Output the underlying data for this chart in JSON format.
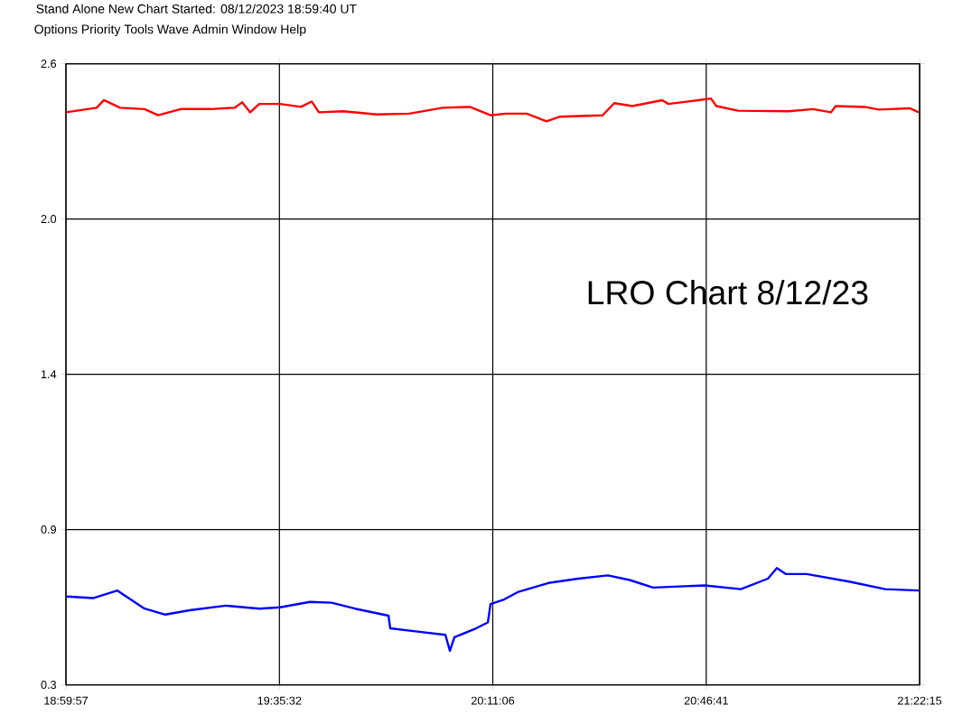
{
  "chart_data": {
    "type": "line",
    "title": "Stand Alone  New Chart Started: 08/12/2023 18:59:40 UT",
    "subtitle": "Options  Priority  Tools  Wave  Admin  Window  Help",
    "annotations": [
      "LRO Chart 8/12/23"
    ],
    "xlim": [
      18.99917,
      21.37083
    ],
    "xticks": [
      {
        "value": 18.99917,
        "label": "18:59:57"
      },
      {
        "value": 19.59222,
        "label": "19:35:32"
      },
      {
        "value": 20.185,
        "label": "20:11:06"
      },
      {
        "value": 20.77806,
        "label": "20:46:41"
      },
      {
        "value": 21.37083,
        "label": "21:22:15"
      }
    ],
    "ylim": [
      0.3,
      2.6
    ],
    "yticks": [
      {
        "value": 0.3,
        "label": "0.3"
      },
      {
        "value": 0.875,
        "label": "0.9"
      },
      {
        "value": 1.45,
        "label": "1.4"
      },
      {
        "value": 2.025,
        "label": "2.0"
      },
      {
        "value": 2.6,
        "label": "2.6"
      }
    ],
    "grid": true,
    "marker": "none",
    "line_style": "solid",
    "series": [
      {
        "color": "#ff0000",
        "x": [
          18.9992,
          19.0845,
          19.1046,
          19.1497,
          19.2175,
          19.2552,
          19.3179,
          19.4007,
          19.4685,
          19.4886,
          19.5111,
          19.5363,
          19.594,
          19.6519,
          19.6818,
          19.7019,
          19.7697,
          19.8625,
          19.9529,
          20.0458,
          20.1211,
          20.1788,
          20.2214,
          20.2792,
          20.3344,
          20.372,
          20.49,
          20.5226,
          20.5728,
          20.6556,
          20.6732,
          20.756,
          20.7912,
          20.8062,
          20.8664,
          21.0069,
          21.0747,
          21.1249,
          21.1374,
          21.2177,
          21.2579,
          21.3432,
          21.3683
        ],
        "values": [
          2.42,
          2.437,
          2.465,
          2.437,
          2.432,
          2.409,
          2.432,
          2.432,
          2.437,
          2.457,
          2.42,
          2.451,
          2.451,
          2.44,
          2.46,
          2.42,
          2.424,
          2.412,
          2.415,
          2.437,
          2.44,
          2.409,
          2.415,
          2.415,
          2.387,
          2.404,
          2.409,
          2.454,
          2.443,
          2.465,
          2.451,
          2.465,
          2.471,
          2.443,
          2.426,
          2.424,
          2.432,
          2.42,
          2.443,
          2.44,
          2.43,
          2.435,
          2.42
        ]
      },
      {
        "color": "#0000ff",
        "x": [
          18.9992,
          19.0745,
          19.1422,
          19.2175,
          19.2752,
          19.343,
          19.4434,
          19.5363,
          19.594,
          19.6768,
          19.737,
          19.8023,
          19.8952,
          19.9002,
          19.9705,
          20.0533,
          20.0659,
          20.0784,
          20.1386,
          20.1713,
          20.1788,
          20.2164,
          20.2541,
          20.3394,
          20.4222,
          20.505,
          20.5653,
          20.6305,
          20.7736,
          20.874,
          20.9493,
          20.9743,
          20.9994,
          21.0571,
          21.1751,
          21.2754,
          21.3683
        ],
        "values": [
          0.627,
          0.621,
          0.649,
          0.582,
          0.56,
          0.576,
          0.593,
          0.582,
          0.587,
          0.607,
          0.604,
          0.582,
          0.556,
          0.509,
          0.498,
          0.485,
          0.426,
          0.476,
          0.509,
          0.531,
          0.599,
          0.616,
          0.643,
          0.677,
          0.693,
          0.705,
          0.688,
          0.66,
          0.668,
          0.654,
          0.693,
          0.732,
          0.71,
          0.71,
          0.682,
          0.654,
          0.649
        ]
      }
    ]
  }
}
